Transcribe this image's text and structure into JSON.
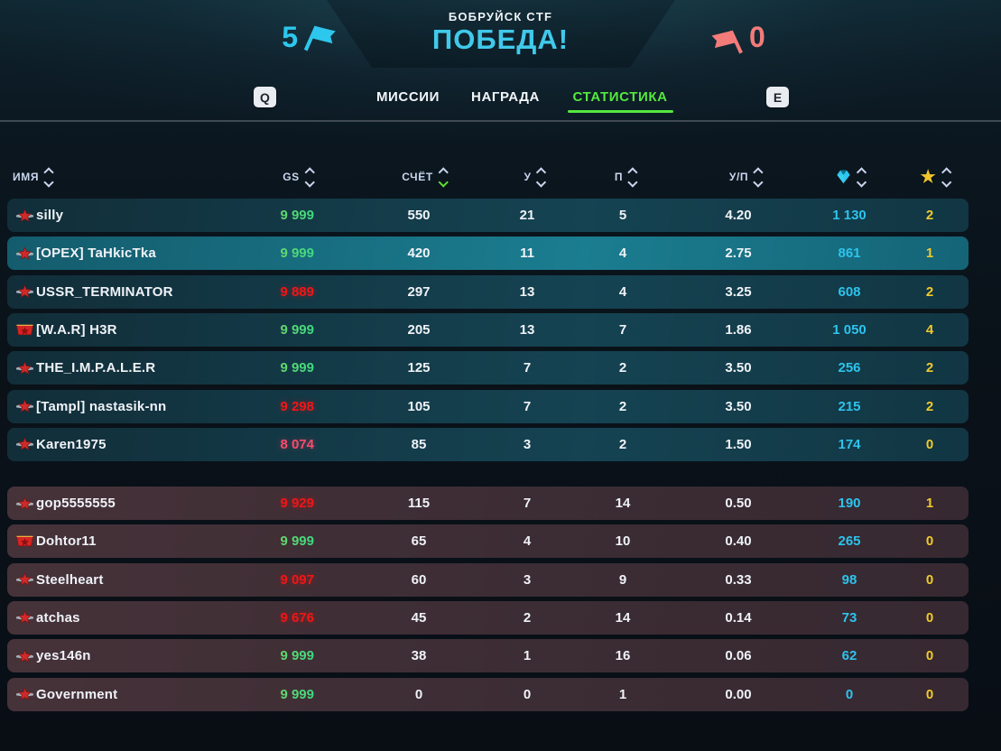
{
  "match": {
    "title": "БОБРУЙСК CTF",
    "result": "ПОБЕДА!",
    "score_blue": "5",
    "score_red": "0"
  },
  "tabs": {
    "key_left": "Q",
    "key_right": "E",
    "items": [
      {
        "label": "МИССИИ",
        "active": false
      },
      {
        "label": "НАГРАДА",
        "active": false
      },
      {
        "label": "СТАТИСТИКА",
        "active": true
      }
    ]
  },
  "icons": {
    "score_blue": "flag-icon",
    "score_red": "flag-icon",
    "crystals_column": "gem-icon",
    "stars_column": "star-icon",
    "rank_regular": "red-star-wings-icon",
    "rank_elite": "red-banner-star-icon"
  },
  "colors": {
    "accent_cyan": "#2dc7ee",
    "accent_red": "#f37b79",
    "tab_active_green": "#55e93e",
    "sort_active_green": "#5fe031",
    "gs_gradient": [
      "#d2cc42",
      "#3bda80"
    ],
    "gs_red": "#f21515",
    "gs_pink": "#fb4a6b",
    "crystal_value": "#2cc3ec",
    "star_value": "#f0ca2b"
  },
  "table": {
    "columns": {
      "name": "ИМЯ",
      "gs": "GS",
      "score": "СЧЁТ",
      "kills": "У",
      "deaths": "П",
      "kd": "У/П"
    },
    "sort": {
      "column": "score",
      "direction": "desc"
    },
    "teams": [
      {
        "id": "blue",
        "players": [
          {
            "name": "silly",
            "gs": "9 999",
            "gs_style": "grad",
            "score": "550",
            "kills": "21",
            "deaths": "5",
            "kd": "4.20",
            "crystals": "1 130",
            "stars": "2",
            "rank": "star",
            "highlight": false
          },
          {
            "name": "[OPEX] TaHkicTka",
            "gs": "9 999",
            "gs_style": "grad",
            "score": "420",
            "kills": "11",
            "deaths": "4",
            "kd": "2.75",
            "crystals": "861",
            "stars": "1",
            "rank": "star",
            "highlight": true
          },
          {
            "name": "USSR_TERMINATOR",
            "gs": "9 889",
            "gs_style": "red",
            "score": "297",
            "kills": "13",
            "deaths": "4",
            "kd": "3.25",
            "crystals": "608",
            "stars": "2",
            "rank": "star",
            "highlight": false
          },
          {
            "name": "[W.A.R] H3R",
            "gs": "9 999",
            "gs_style": "grad",
            "score": "205",
            "kills": "13",
            "deaths": "7",
            "kd": "1.86",
            "crystals": "1 050",
            "stars": "4",
            "rank": "banner",
            "highlight": false
          },
          {
            "name": "THE_I.M.P.A.L.E.R",
            "gs": "9 999",
            "gs_style": "grad",
            "score": "125",
            "kills": "7",
            "deaths": "2",
            "kd": "3.50",
            "crystals": "256",
            "stars": "2",
            "rank": "star",
            "highlight": false
          },
          {
            "name": "[Tampl] nastasik-nn",
            "gs": "9 298",
            "gs_style": "red",
            "score": "105",
            "kills": "7",
            "deaths": "2",
            "kd": "3.50",
            "crystals": "215",
            "stars": "2",
            "rank": "star",
            "highlight": false
          },
          {
            "name": "Karen1975",
            "gs": "8 074",
            "gs_style": "pink",
            "score": "85",
            "kills": "3",
            "deaths": "2",
            "kd": "1.50",
            "crystals": "174",
            "stars": "0",
            "rank": "star",
            "highlight": false
          }
        ]
      },
      {
        "id": "red",
        "players": [
          {
            "name": "gop5555555",
            "gs": "9 929",
            "gs_style": "red",
            "score": "115",
            "kills": "7",
            "deaths": "14",
            "kd": "0.50",
            "crystals": "190",
            "stars": "1",
            "rank": "star",
            "highlight": false
          },
          {
            "name": "Dohtor11",
            "gs": "9 999",
            "gs_style": "grad",
            "score": "65",
            "kills": "4",
            "deaths": "10",
            "kd": "0.40",
            "crystals": "265",
            "stars": "0",
            "rank": "banner",
            "highlight": false
          },
          {
            "name": "Steelheart",
            "gs": "9 097",
            "gs_style": "red",
            "score": "60",
            "kills": "3",
            "deaths": "9",
            "kd": "0.33",
            "crystals": "98",
            "stars": "0",
            "rank": "star",
            "highlight": false
          },
          {
            "name": "atchas",
            "gs": "9 676",
            "gs_style": "red",
            "score": "45",
            "kills": "2",
            "deaths": "14",
            "kd": "0.14",
            "crystals": "73",
            "stars": "0",
            "rank": "star",
            "highlight": false
          },
          {
            "name": "yes146n",
            "gs": "9 999",
            "gs_style": "grad",
            "score": "38",
            "kills": "1",
            "deaths": "16",
            "kd": "0.06",
            "crystals": "62",
            "stars": "0",
            "rank": "star",
            "highlight": false
          },
          {
            "name": "Government",
            "gs": "9 999",
            "gs_style": "grad",
            "score": "0",
            "kills": "0",
            "deaths": "1",
            "kd": "0.00",
            "crystals": "0",
            "stars": "0",
            "rank": "star",
            "highlight": false
          }
        ]
      }
    ]
  }
}
